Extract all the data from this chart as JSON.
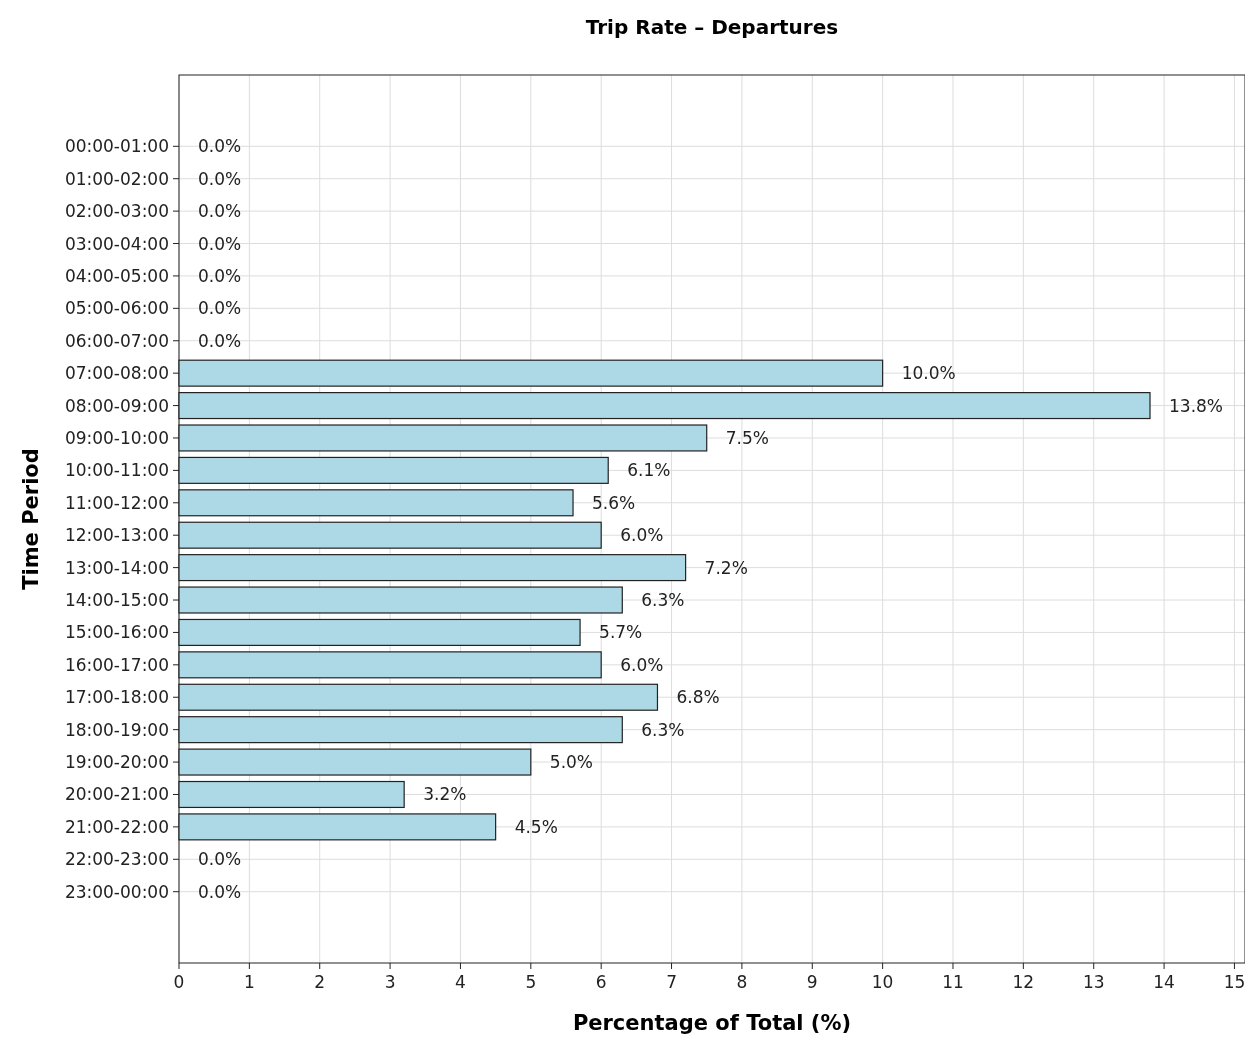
{
  "chart_data": {
    "type": "bar",
    "orientation": "horizontal",
    "title": "Trip Rate – Departures",
    "xlabel": "Percentage of Total (%)",
    "ylabel": "Time Period",
    "categories": [
      "00:00-01:00",
      "01:00-02:00",
      "02:00-03:00",
      "03:00-04:00",
      "04:00-05:00",
      "05:00-06:00",
      "06:00-07:00",
      "07:00-08:00",
      "08:00-09:00",
      "09:00-10:00",
      "10:00-11:00",
      "11:00-12:00",
      "12:00-13:00",
      "13:00-14:00",
      "14:00-15:00",
      "15:00-16:00",
      "16:00-17:00",
      "17:00-18:00",
      "18:00-19:00",
      "19:00-20:00",
      "20:00-21:00",
      "21:00-22:00",
      "22:00-23:00",
      "23:00-00:00"
    ],
    "values": [
      0,
      0,
      0,
      0,
      0,
      0,
      0,
      10.0,
      13.8,
      7.5,
      6.1,
      5.6,
      6.0,
      7.2,
      6.3,
      5.7,
      6.0,
      6.8,
      6.3,
      5.0,
      3.2,
      4.5,
      0,
      0
    ],
    "value_labels": [
      "0.0%",
      "0.0%",
      "0.0%",
      "0.0%",
      "0.0%",
      "0.0%",
      "0.0%",
      "10.0%",
      "13.8%",
      "7.5%",
      "6.1%",
      "5.6%",
      "6.0%",
      "7.2%",
      "6.3%",
      "5.7%",
      "6.0%",
      "6.8%",
      "6.3%",
      "5.0%",
      "3.2%",
      "4.5%",
      "0.0%",
      "0.0%"
    ],
    "color": "#add8e6",
    "xlim": [
      0,
      15.15
    ],
    "xticks": [
      0,
      1,
      2,
      3,
      4,
      5,
      6,
      7,
      8,
      9,
      10,
      11,
      12,
      13,
      14,
      15
    ],
    "grid": true
  }
}
